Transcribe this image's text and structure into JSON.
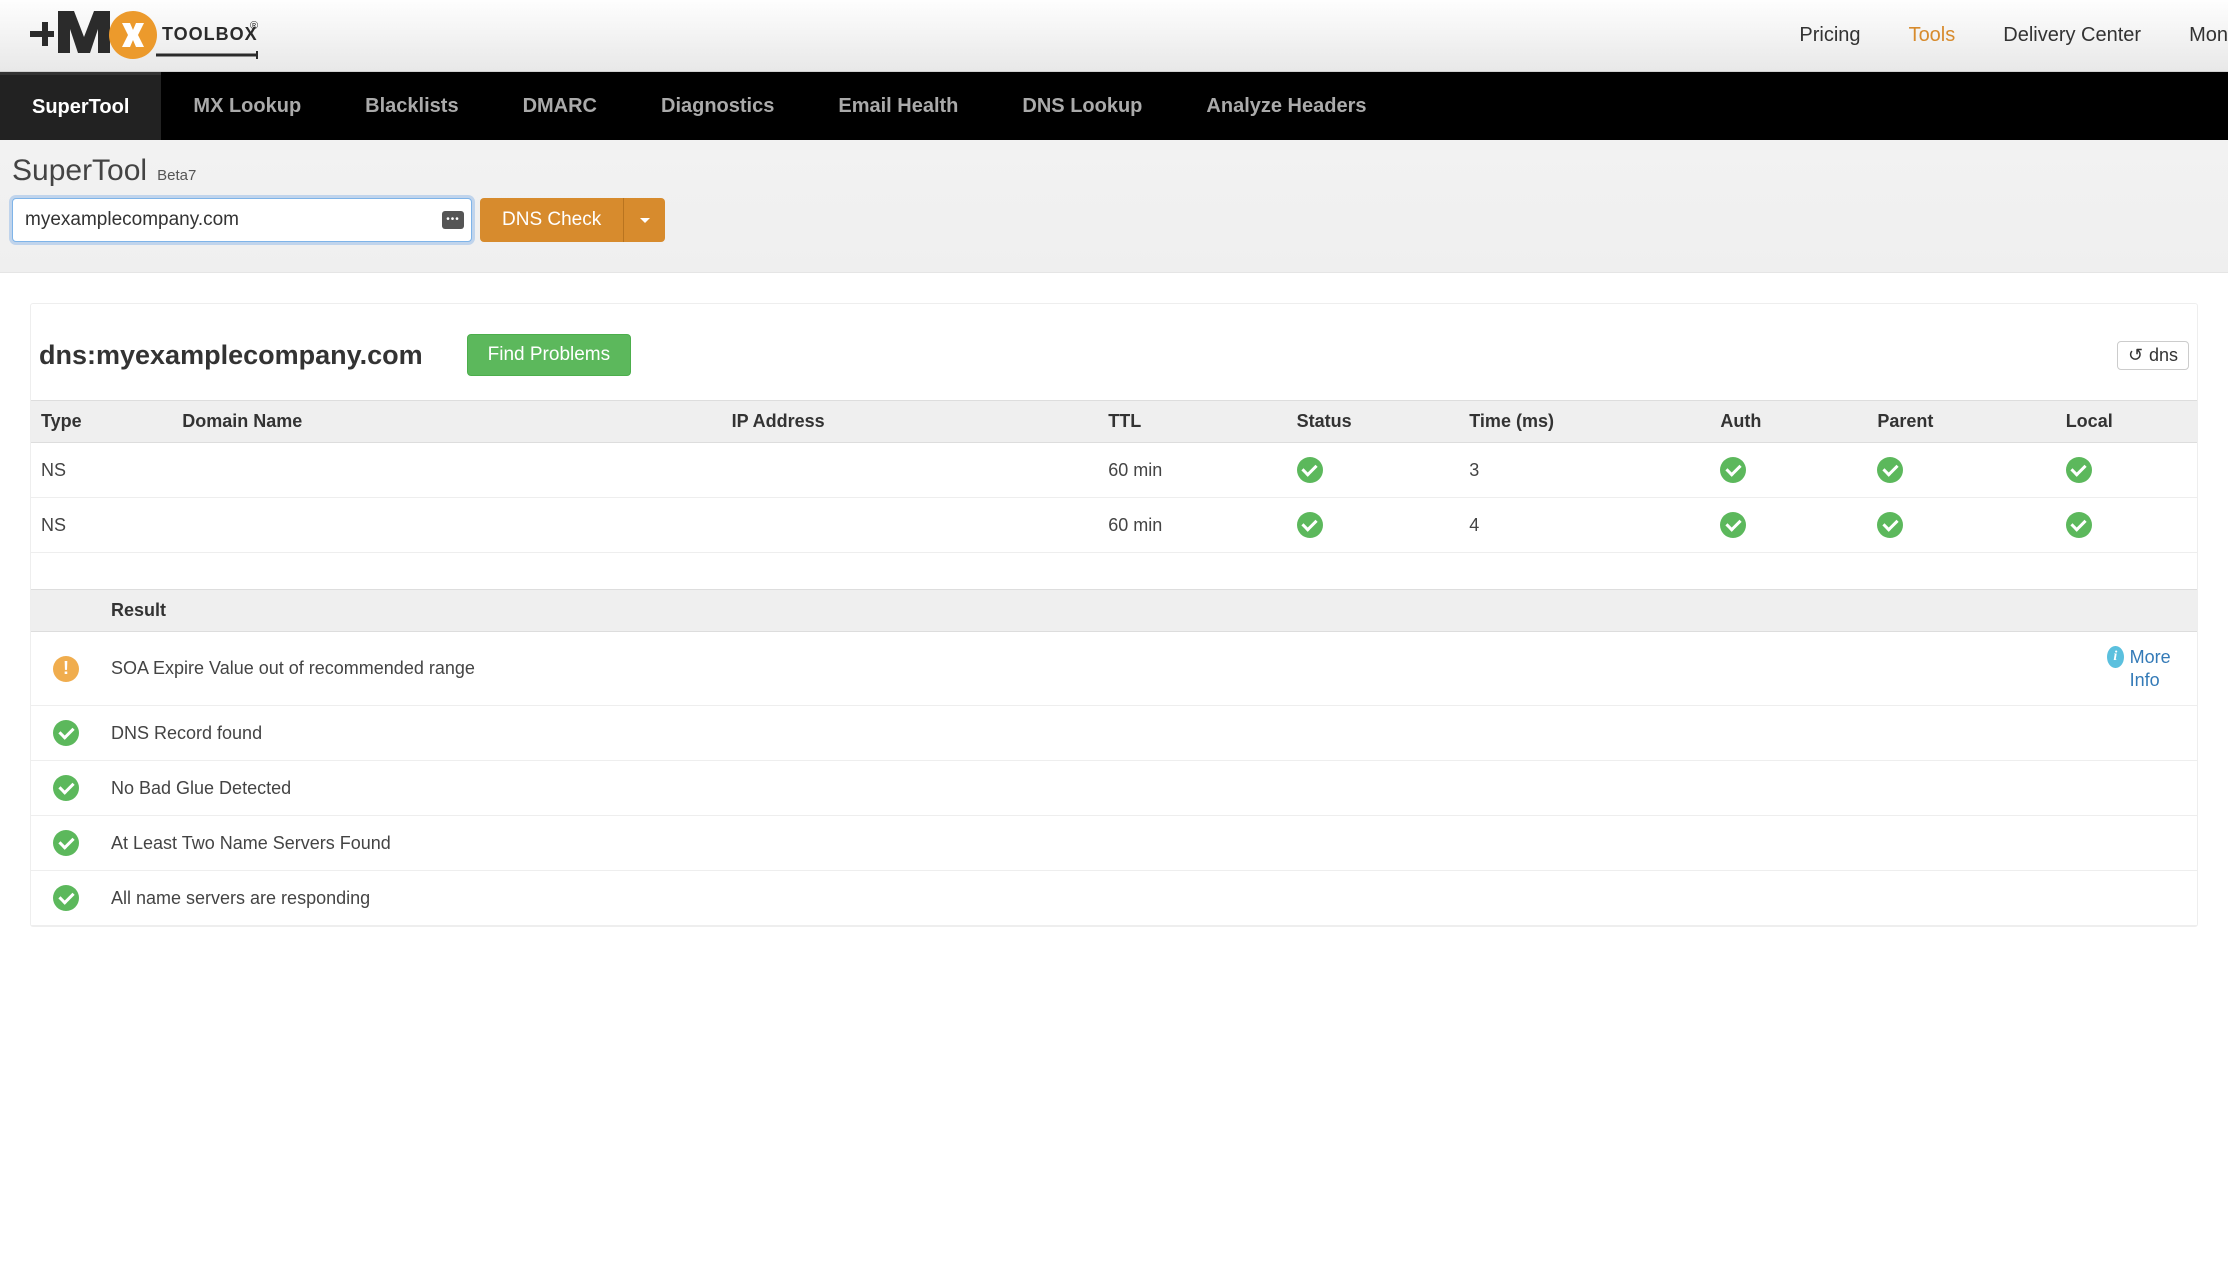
{
  "brand": {
    "name": "MXTOOLBOX",
    "registered": "®"
  },
  "top_nav": {
    "items": [
      {
        "label": "Pricing",
        "active": false
      },
      {
        "label": "Tools",
        "active": true
      },
      {
        "label": "Delivery Center",
        "active": false
      },
      {
        "label": "Mon",
        "active": false
      }
    ]
  },
  "tool_tabs": {
    "items": [
      {
        "label": "SuperTool",
        "active": true
      },
      {
        "label": "MX Lookup",
        "active": false
      },
      {
        "label": "Blacklists",
        "active": false
      },
      {
        "label": "DMARC",
        "active": false
      },
      {
        "label": "Diagnostics",
        "active": false
      },
      {
        "label": "Email Health",
        "active": false
      },
      {
        "label": "DNS Lookup",
        "active": false
      },
      {
        "label": "Analyze Headers",
        "active": false
      }
    ]
  },
  "tool": {
    "title": "SuperTool",
    "beta": "Beta7",
    "input_value": "myexamplecompany.com",
    "input_placeholder": "",
    "action_label": "DNS Check",
    "hint_glyph": "•••"
  },
  "result_header": {
    "title": "dns:myexamplecompany.com",
    "find_problems_label": "Find Problems",
    "refresh_label": "dns",
    "refresh_icon": "↻"
  },
  "ns_table": {
    "columns": [
      "Type",
      "Domain Name",
      "IP Address",
      "TTL",
      "Status",
      "Time (ms)",
      "Auth",
      "Parent",
      "Local"
    ],
    "rows": [
      {
        "type": "NS",
        "domain": "",
        "ip": "",
        "ttl": "60 min",
        "status": "ok",
        "time": "3",
        "auth": "ok",
        "parent": "ok",
        "local": "ok"
      },
      {
        "type": "NS",
        "domain": "",
        "ip": "",
        "ttl": "60 min",
        "status": "ok",
        "time": "4",
        "auth": "ok",
        "parent": "ok",
        "local": "ok"
      }
    ]
  },
  "result_table": {
    "header": "Result",
    "more_info_label": "More Info",
    "rows": [
      {
        "status": "warn",
        "text": "SOA Expire Value out of recommended range",
        "more": true
      },
      {
        "status": "ok",
        "text": "DNS Record found",
        "more": false
      },
      {
        "status": "ok",
        "text": "No Bad Glue Detected",
        "more": false
      },
      {
        "status": "ok",
        "text": "At Least Two Name Servers Found",
        "more": false
      },
      {
        "status": "ok",
        "text": "All name servers are responding",
        "more": false
      }
    ]
  },
  "colors": {
    "accent_orange": "#d78b2d",
    "accent_green": "#5cb85c",
    "accent_warn": "#f0ad4e",
    "accent_info": "#5bc0de",
    "link": "#337ab7",
    "tab_bg": "#000000",
    "header_grad_from": "#fefefe",
    "header_grad_to": "#e8e8e8"
  }
}
